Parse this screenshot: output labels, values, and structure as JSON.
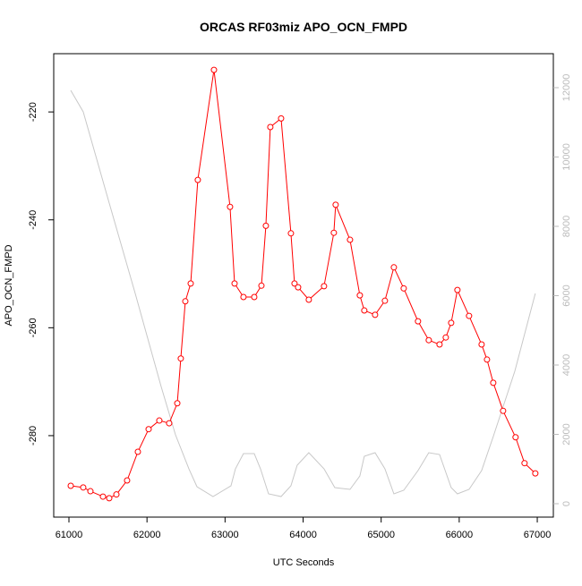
{
  "chart_data": {
    "type": "line",
    "title": "ORCAS RF03miz APO_OCN_FMPD",
    "x_label": "UTC Seconds",
    "y_label": "APO_OCN_FMPD",
    "xlim": [
      60805,
      67206
    ],
    "xticks": [
      61000,
      62000,
      63000,
      64000,
      65000,
      66000,
      67000
    ],
    "ylim": [
      -295.1,
      -209.2
    ],
    "yticks": [
      -220,
      -240,
      -260,
      -280
    ],
    "y2lim": [
      -387,
      12980
    ],
    "y2ticks": [
      0,
      2000,
      4000,
      6000,
      8000,
      10000,
      12000
    ],
    "series": [
      {
        "color": "#ff0000",
        "markers": true,
        "x": [
          61023,
          61183,
          61275,
          61436,
          61516,
          61608,
          61745,
          61883,
          62021,
          62158,
          62284,
          62388,
          62433,
          62491,
          62560,
          62651,
          62858,
          63064,
          63122,
          63236,
          63374,
          63466,
          63523,
          63580,
          63718,
          63844,
          63890,
          63936,
          64073,
          64268,
          64394,
          64417,
          64601,
          64727,
          64784,
          64922,
          65048,
          65163,
          65289,
          65472,
          65610,
          65748,
          65828,
          65897,
          65977,
          66126,
          66287,
          66356,
          66436,
          66562,
          66722,
          66837,
          66975
        ],
        "values": [
          -289.3,
          -289.6,
          -290.3,
          -291.3,
          -291.6,
          -290.9,
          -288.3,
          -283.0,
          -278.8,
          -277.2,
          -277.7,
          -274.0,
          -265.7,
          -255.1,
          -251.8,
          -232.6,
          -212.2,
          -237.6,
          -251.8,
          -254.3,
          -254.3,
          -252.2,
          -241.1,
          -222.8,
          -221.2,
          -242.5,
          -251.8,
          -252.5,
          -254.8,
          -252.3,
          -242.4,
          -237.2,
          -243.7,
          -254.0,
          -256.8,
          -257.6,
          -255.0,
          -248.8,
          -252.7,
          -258.8,
          -262.3,
          -263.1,
          -261.8,
          -259.1,
          -253.0,
          -257.8,
          -263.1,
          -265.9,
          -270.2,
          -275.4,
          -280.3,
          -285.1,
          -287.0
        ]
      },
      {
        "color": "#c8c8c8",
        "axis": "y2",
        "markers": false,
        "x": [
          61023,
          61183,
          61516,
          61849,
          62181,
          62365,
          62537,
          62640,
          62846,
          63076,
          63133,
          63236,
          63374,
          63454,
          63557,
          63718,
          63844,
          63924,
          64073,
          64268,
          64406,
          64601,
          64727,
          64784,
          64922,
          65048,
          65163,
          65289,
          65472,
          65610,
          65748,
          65897,
          65977,
          66126,
          66287,
          66436,
          66712,
          66975
        ],
        "values": [
          11922,
          11303,
          8671,
          6064,
          3381,
          1987,
          1006,
          490,
          206,
          516,
          1006,
          1445,
          1445,
          1006,
          284,
          206,
          516,
          1110,
          1471,
          1006,
          465,
          413,
          800,
          1368,
          1471,
          1006,
          284,
          387,
          955,
          1471,
          1419,
          465,
          284,
          413,
          955,
          1935,
          3819,
          6064
        ]
      }
    ]
  }
}
